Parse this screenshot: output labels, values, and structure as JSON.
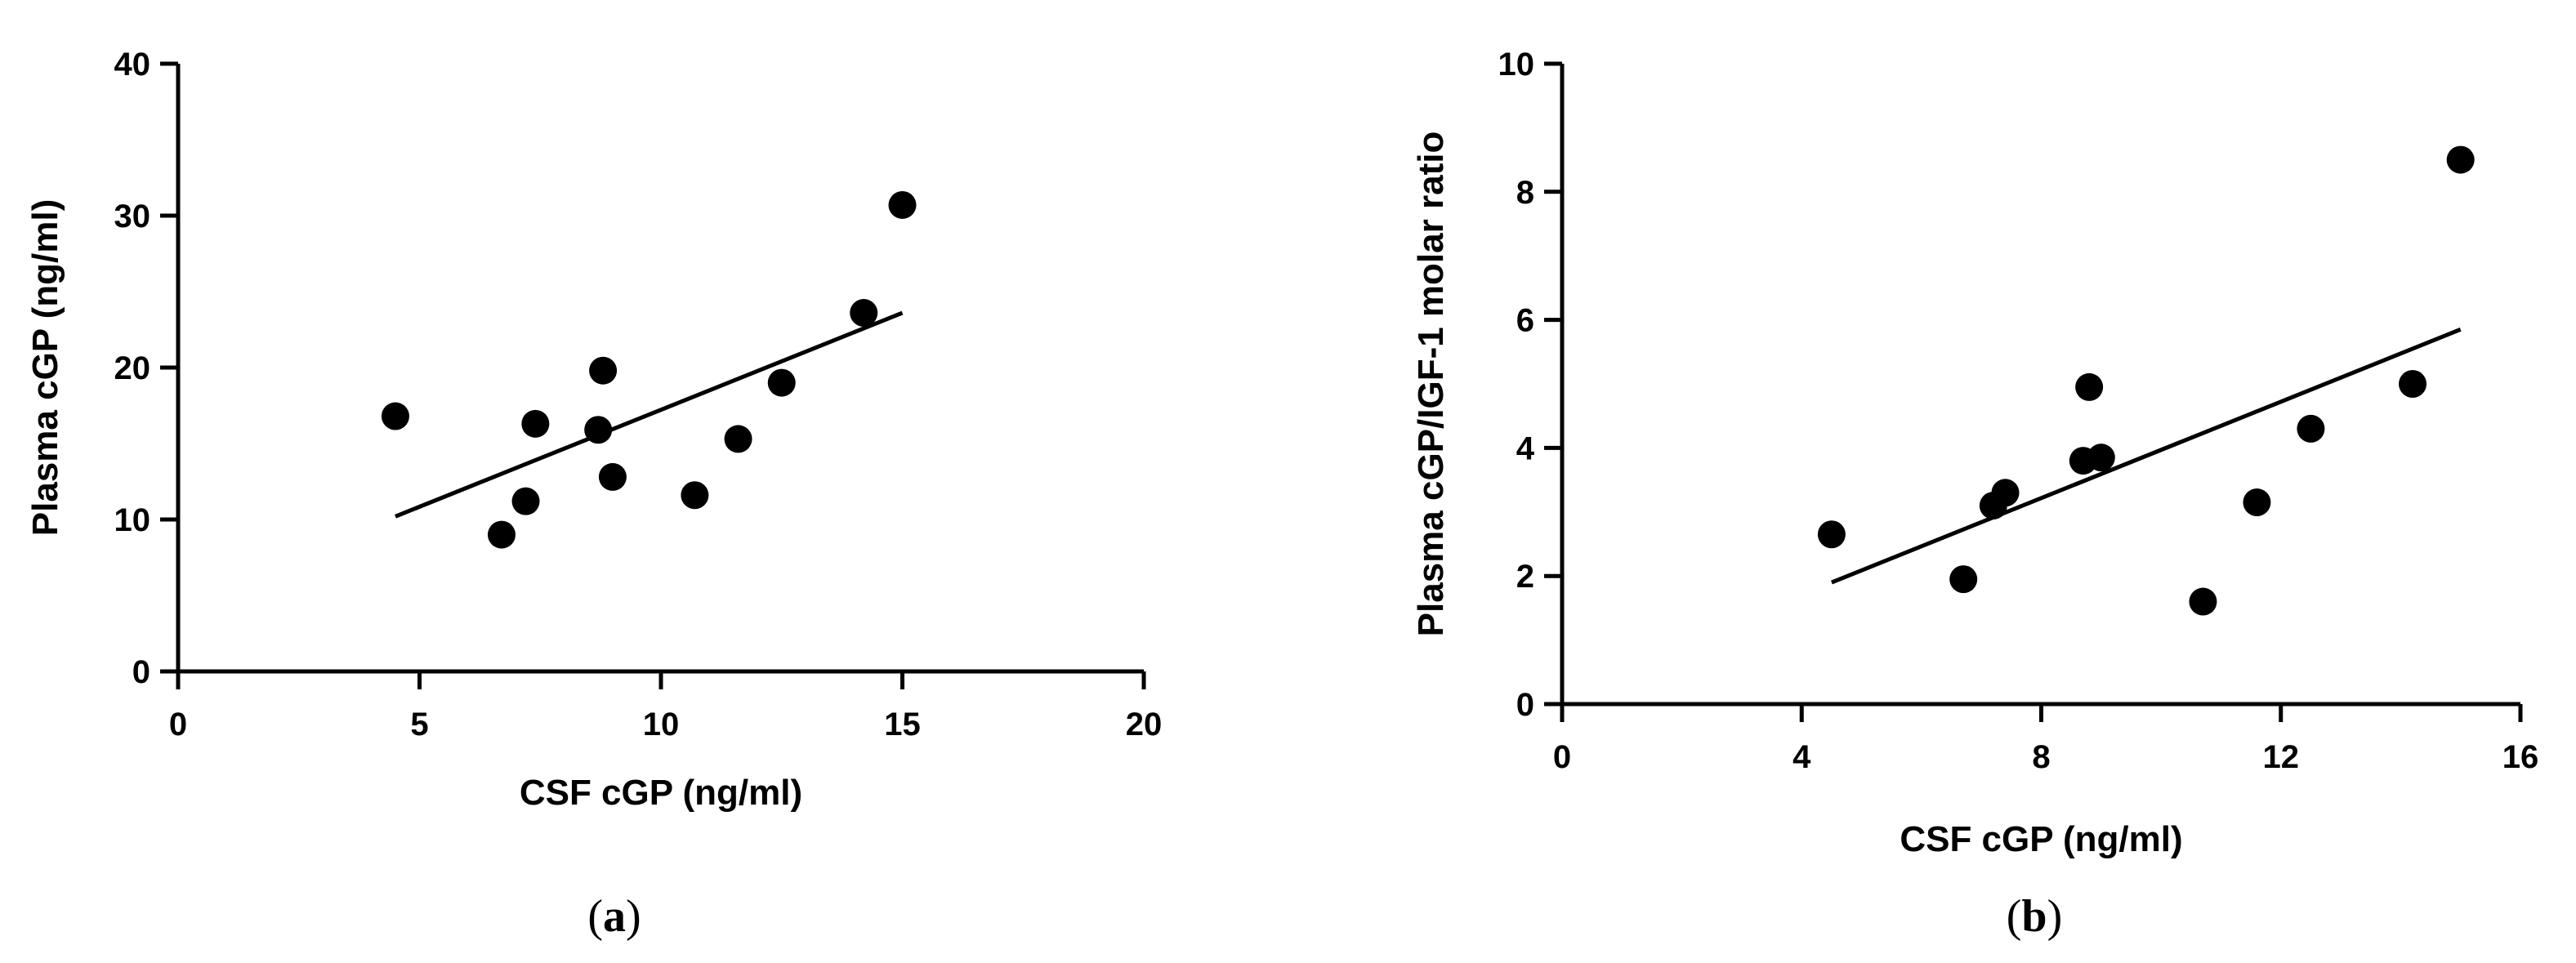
{
  "chart_data": [
    {
      "type": "scatter",
      "panel_label": "a",
      "xlabel": "CSF cGP (ng/ml)",
      "ylabel": "Plasma cGP (ng/ml)",
      "xlim": [
        0,
        20
      ],
      "ylim": [
        0,
        40
      ],
      "xticks": [
        0,
        5,
        10,
        15,
        20
      ],
      "yticks": [
        0,
        10,
        20,
        30,
        40
      ],
      "points": [
        {
          "x": 4.5,
          "y": 16.8
        },
        {
          "x": 6.7,
          "y": 9.0
        },
        {
          "x": 7.2,
          "y": 11.2
        },
        {
          "x": 7.4,
          "y": 16.3
        },
        {
          "x": 8.7,
          "y": 15.9
        },
        {
          "x": 8.8,
          "y": 19.8
        },
        {
          "x": 9.0,
          "y": 12.8
        },
        {
          "x": 10.7,
          "y": 11.6
        },
        {
          "x": 11.6,
          "y": 15.3
        },
        {
          "x": 12.5,
          "y": 19.0
        },
        {
          "x": 14.2,
          "y": 23.6
        },
        {
          "x": 15.0,
          "y": 30.7
        }
      ],
      "fit_line": {
        "x1": 4.5,
        "y1": 10.2,
        "x2": 15.0,
        "y2": 23.6
      },
      "grid": false,
      "legend": "none"
    },
    {
      "type": "scatter",
      "panel_label": "b",
      "xlabel": "CSF cGP (ng/ml)",
      "ylabel": "Plasma cGP/IGF-1 molar ratio",
      "xlim": [
        0,
        16
      ],
      "ylim": [
        0,
        10
      ],
      "xticks": [
        0,
        4,
        8,
        12,
        16
      ],
      "yticks": [
        0,
        2,
        4,
        6,
        8,
        10
      ],
      "points": [
        {
          "x": 4.5,
          "y": 2.65
        },
        {
          "x": 6.7,
          "y": 1.95
        },
        {
          "x": 7.2,
          "y": 3.1
        },
        {
          "x": 7.4,
          "y": 3.3
        },
        {
          "x": 8.7,
          "y": 3.8
        },
        {
          "x": 8.8,
          "y": 4.95
        },
        {
          "x": 9.0,
          "y": 3.85
        },
        {
          "x": 10.7,
          "y": 1.6
        },
        {
          "x": 11.6,
          "y": 3.15
        },
        {
          "x": 12.5,
          "y": 4.3
        },
        {
          "x": 14.2,
          "y": 5.0
        },
        {
          "x": 15.0,
          "y": 8.5
        }
      ],
      "fit_line": {
        "x1": 4.5,
        "y1": 1.9,
        "x2": 15.0,
        "y2": 5.85
      },
      "grid": false,
      "legend": "none"
    }
  ]
}
